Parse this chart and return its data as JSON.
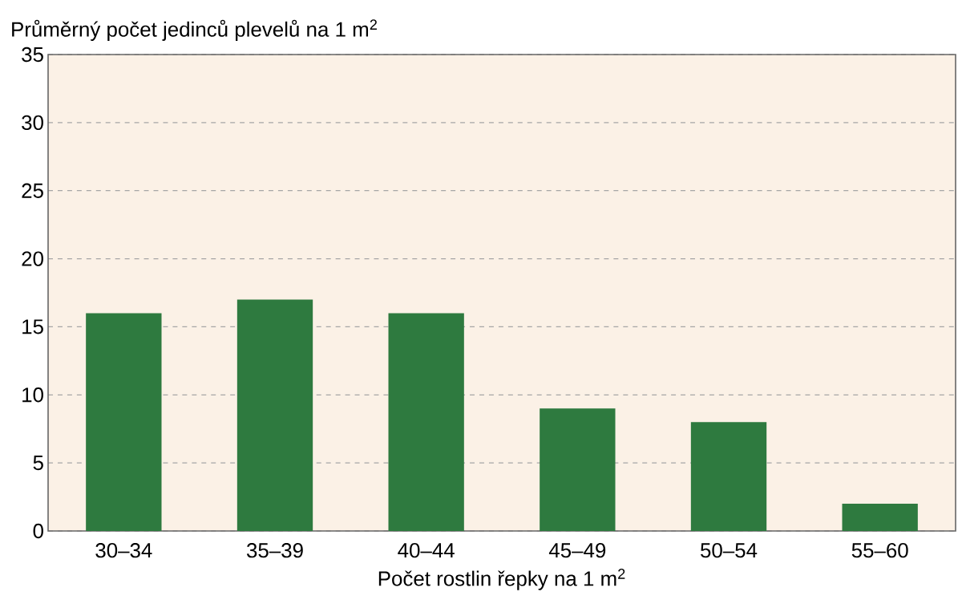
{
  "chart_data": {
    "type": "bar",
    "ylabel": "Průměrný počet jedinců plevelů na 1 m$^{2}$",
    "xlabel": "Počet rostlin řepky na 1 m$^{2}$",
    "categories": [
      "30–34",
      "35–39",
      "40–44",
      "45–49",
      "50–54",
      "55–60"
    ],
    "values": [
      16,
      17,
      16,
      9,
      8,
      2
    ],
    "color": "#2e7a3f",
    "ylim": [
      0,
      35
    ],
    "yticks": [
      0,
      5,
      10,
      15,
      20,
      25,
      30,
      35
    ],
    "grid": "y"
  }
}
